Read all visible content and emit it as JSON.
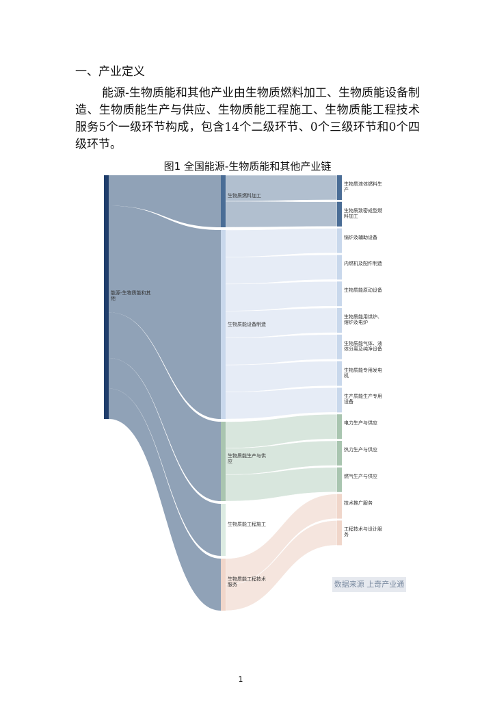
{
  "heading": "一、产业定义",
  "paragraph": "能源-生物质能和其他产业由生物质燃料加工、生物质能设备制造、生物质能生产与供应、生物质能工程施工、生物质能工程技术服务5个一级环节构成，包含14个二级环节、0个三级环节和0个四级环节。",
  "figure": {
    "title": "图1 全国能源-生物质能和其他产业链",
    "root": "能源-生物质能和其他",
    "level1": [
      {
        "label": "生物质燃料加工",
        "children": [
          "生物质液体燃料生产",
          "生物质致密成型燃料加工"
        ]
      },
      {
        "label": "生物质能设备制造",
        "children": [
          "锅炉及辅助设备",
          "内燃机及配件制造",
          "生物质能原动设备",
          "生物质能用烘炉、熔炉及电炉",
          "生物质能气体、液体分离及纯净设备",
          "生物质能专用发电机",
          "生产质能生产专用设备"
        ]
      },
      {
        "label": "生物质能生产与供应",
        "children": [
          "电力生产与供应",
          "热力生产与供应",
          "燃气生产与供应"
        ]
      },
      {
        "label": "生物质能工程施工",
        "children": []
      },
      {
        "label": "生物质能工程技术服务",
        "children": [
          "技术推广服务",
          "工程技术与设计服务"
        ]
      }
    ]
  },
  "source": "数据来源 上奇产业通",
  "page_number": "1"
}
